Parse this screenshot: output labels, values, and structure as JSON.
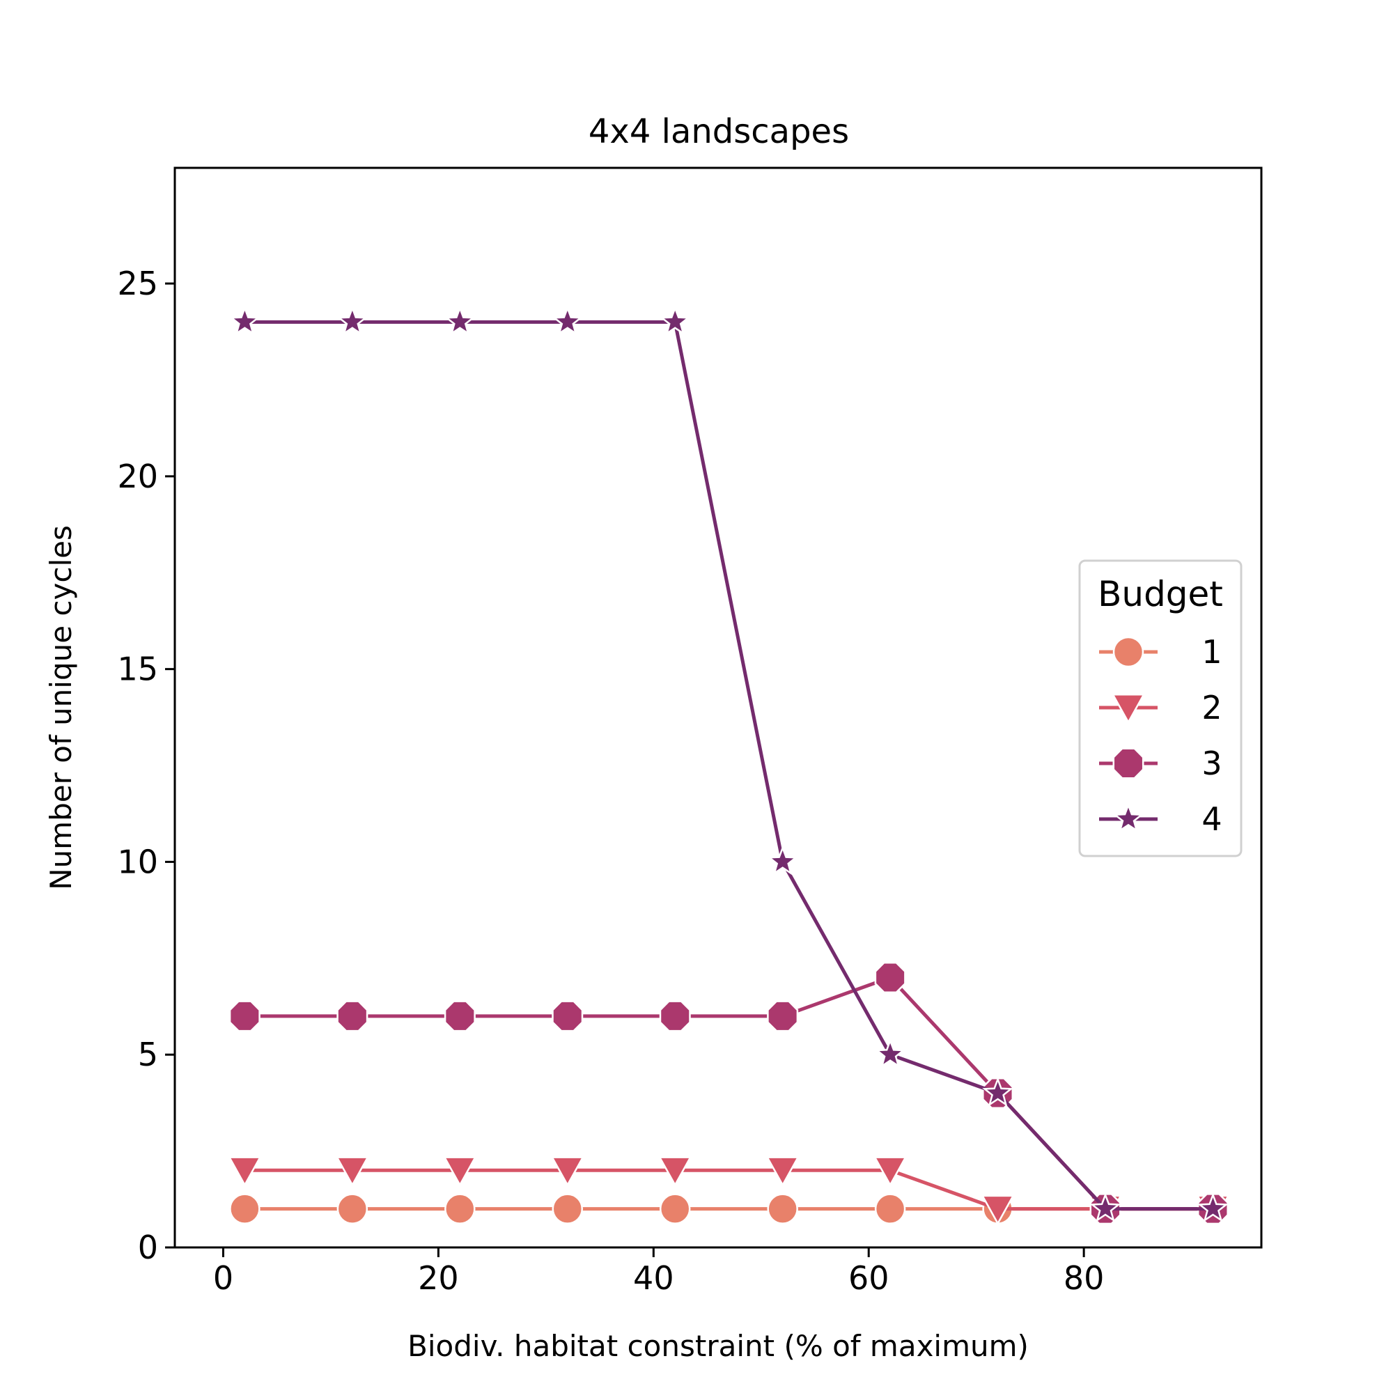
{
  "chart_data": {
    "type": "line",
    "title": "4x4 landscapes",
    "xlabel": "Biodiv. habitat constraint (% of maximum)",
    "ylabel": "Number of unique cycles",
    "xlim": [
      -4.5,
      96.5
    ],
    "ylim": [
      0,
      28
    ],
    "xticks": [
      0,
      20,
      40,
      60,
      80
    ],
    "yticks": [
      0,
      5,
      10,
      15,
      20,
      25
    ],
    "grid": false,
    "legend": {
      "title": "Budget",
      "position": "center-right"
    },
    "x": [
      2,
      12,
      22,
      32,
      42,
      52,
      62,
      72,
      82,
      92
    ],
    "series": [
      {
        "name": "1",
        "marker": "circle",
        "color": "#e8816a",
        "values": [
          1,
          1,
          1,
          1,
          1,
          1,
          1,
          1,
          1,
          1
        ]
      },
      {
        "name": "2",
        "marker": "triangle-down",
        "color": "#d65466",
        "values": [
          2,
          2,
          2,
          2,
          2,
          2,
          2,
          1,
          1,
          1
        ]
      },
      {
        "name": "3",
        "marker": "octagon",
        "color": "#ab386d",
        "values": [
          6,
          6,
          6,
          6,
          6,
          6,
          7,
          4,
          1,
          1
        ]
      },
      {
        "name": "4",
        "marker": "star",
        "color": "#742b6d",
        "values": [
          24,
          24,
          24,
          24,
          24,
          10,
          5,
          4,
          1,
          1
        ]
      }
    ]
  }
}
